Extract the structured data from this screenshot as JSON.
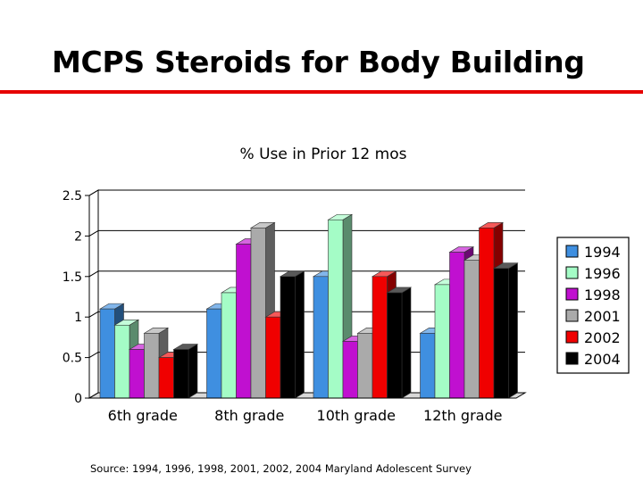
{
  "slide": {
    "title": "MCPS Steroids for Body Building",
    "source": "Source: 1994, 1996, 1998, 2001, 2002, 2004 Maryland Adolescent Survey"
  },
  "chart_data": {
    "type": "bar",
    "title": "% Use in Prior 12 mos",
    "categories": [
      "6th grade",
      "8th grade",
      "10th grade",
      "12th grade"
    ],
    "series": [
      {
        "name": "1994",
        "color": "#3f8fe0",
        "values": [
          1.1,
          1.1,
          1.5,
          0.8
        ]
      },
      {
        "name": "1996",
        "color": "#a4fcc6",
        "values": [
          0.9,
          1.3,
          2.2,
          1.4
        ]
      },
      {
        "name": "1998",
        "color": "#c010d0",
        "values": [
          0.6,
          1.9,
          0.7,
          1.8
        ]
      },
      {
        "name": "2001",
        "color": "#aaaaaa",
        "values": [
          0.8,
          2.1,
          0.8,
          1.7
        ]
      },
      {
        "name": "2002",
        "color": "#f00000",
        "values": [
          0.5,
          1.0,
          1.5,
          2.1
        ]
      },
      {
        "name": "2004",
        "color": "#000000",
        "values": [
          0.6,
          1.5,
          1.3,
          1.6
        ]
      }
    ],
    "yticks": [
      "0",
      "0.5",
      "1",
      "1.5",
      "2",
      "2.5"
    ],
    "ylim": [
      0,
      2.5
    ],
    "grid": true,
    "legend": "right"
  }
}
